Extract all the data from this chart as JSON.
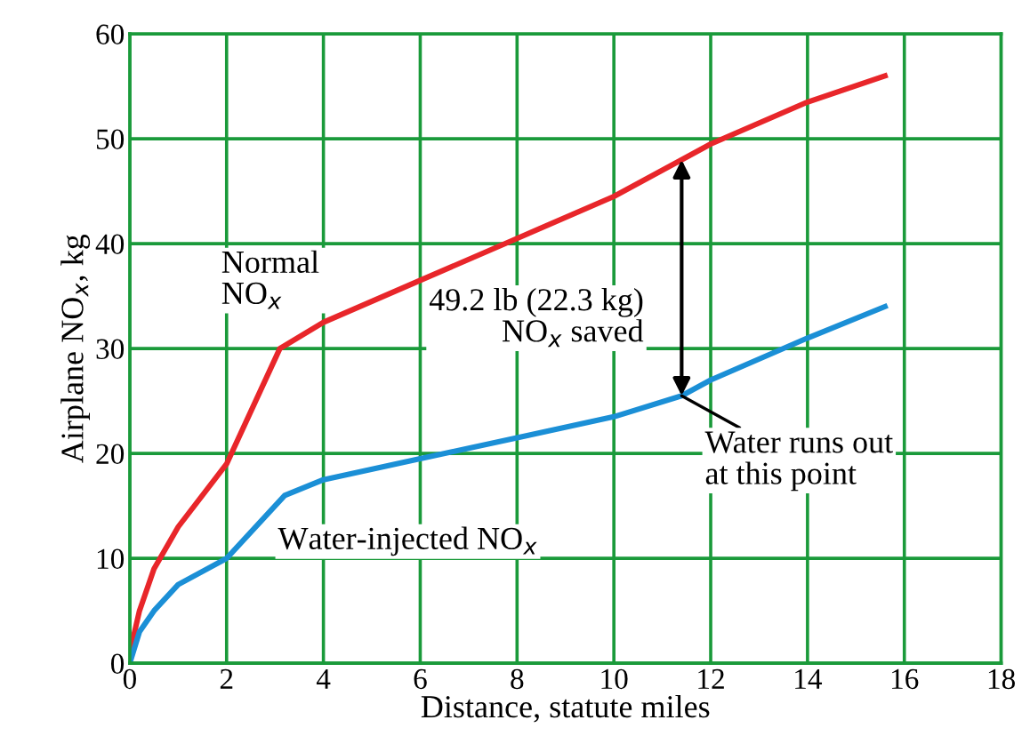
{
  "chart_data": {
    "type": "line",
    "xlabel": "Distance, statute miles",
    "ylabel": "Airplane NO$_{x}$, kg",
    "xlim": [
      0,
      18
    ],
    "ylim": [
      0,
      60
    ],
    "xticks": [
      0,
      2,
      4,
      6,
      8,
      10,
      12,
      14,
      16,
      18
    ],
    "yticks": [
      0,
      10,
      20,
      30,
      40,
      50,
      60
    ],
    "grid": true,
    "series": [
      {
        "name": "Normal NO$_{x}$",
        "color": "#e8262a",
        "x": [
          0,
          0.2,
          0.5,
          1,
          2,
          3.1,
          4,
          6,
          8,
          10,
          11.4,
          12,
          14,
          15.6
        ],
        "values": [
          1,
          5,
          9,
          13,
          19,
          30,
          32.5,
          36.5,
          40.5,
          44.5,
          48,
          49.5,
          53.5,
          56
        ]
      },
      {
        "name": "Water-injected NO$_{x}$",
        "color": "#1b8fd6",
        "x": [
          0,
          0.2,
          0.5,
          1,
          2,
          3.2,
          4,
          6,
          8,
          10,
          11.4,
          12,
          14,
          15.6
        ],
        "values": [
          0,
          3,
          5,
          7.5,
          10,
          16,
          17.5,
          19.5,
          21.5,
          23.5,
          25.5,
          27,
          31,
          34
        ]
      }
    ],
    "annotations": [
      "49.2 lb (22.3 kg)\nNO$_{x}$ saved",
      {
        "text": "Water runs out\nat this point",
        "x": 11.4,
        "y": 25.5
      }
    ]
  }
}
